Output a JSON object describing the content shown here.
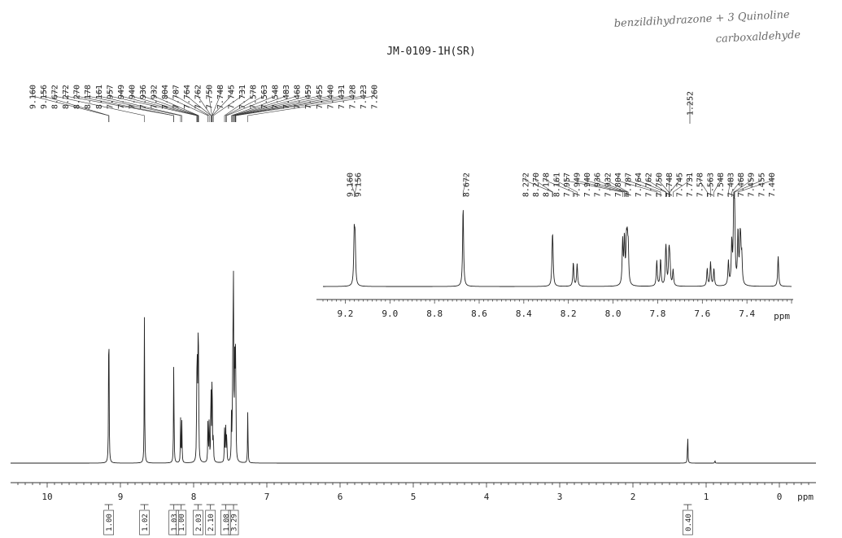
{
  "header": {
    "sample_id": "JM-0109-1H(SR)",
    "handwritten_note_line1": "benzildihydrazone + 3 Quinoline",
    "handwritten_note_line2": "carboxaldehyde"
  },
  "chart_data": [
    {
      "type": "line",
      "subtype": "1H NMR spectrum (full)",
      "xlabel": "ppm",
      "xlim": [
        10.5,
        -0.5
      ],
      "x_axis_reversed": true,
      "x_ticks": [
        10,
        9,
        8,
        7,
        6,
        5,
        4,
        3,
        2,
        1,
        0
      ],
      "grid": false,
      "peaks": [
        {
          "ppm": 9.16,
          "height": 0.62
        },
        {
          "ppm": 9.156,
          "height": 0.55
        },
        {
          "ppm": 8.672,
          "height": 1.0
        },
        {
          "ppm": 8.272,
          "height": 0.4
        },
        {
          "ppm": 8.27,
          "height": 0.36
        },
        {
          "ppm": 8.178,
          "height": 0.3
        },
        {
          "ppm": 8.161,
          "height": 0.28
        },
        {
          "ppm": 7.957,
          "height": 0.55
        },
        {
          "ppm": 7.949,
          "height": 0.58
        },
        {
          "ppm": 7.94,
          "height": 0.5
        },
        {
          "ppm": 7.936,
          "height": 0.45
        },
        {
          "ppm": 7.932,
          "height": 0.42
        },
        {
          "ppm": 7.804,
          "height": 0.32
        },
        {
          "ppm": 7.787,
          "height": 0.34
        },
        {
          "ppm": 7.764,
          "height": 0.3
        },
        {
          "ppm": 7.762,
          "height": 0.28
        },
        {
          "ppm": 7.75,
          "height": 0.25
        },
        {
          "ppm": 7.748,
          "height": 0.24
        },
        {
          "ppm": 7.745,
          "height": 0.22
        },
        {
          "ppm": 7.731,
          "height": 0.2
        },
        {
          "ppm": 7.578,
          "height": 0.22
        },
        {
          "ppm": 7.563,
          "height": 0.3
        },
        {
          "ppm": 7.548,
          "height": 0.22
        },
        {
          "ppm": 7.483,
          "height": 0.3
        },
        {
          "ppm": 7.468,
          "height": 0.52
        },
        {
          "ppm": 7.459,
          "height": 0.9
        },
        {
          "ppm": 7.455,
          "height": 0.78
        },
        {
          "ppm": 7.44,
          "height": 0.66
        },
        {
          "ppm": 7.431,
          "height": 0.45
        },
        {
          "ppm": 7.428,
          "height": 0.38
        },
        {
          "ppm": 7.423,
          "height": 0.32
        },
        {
          "ppm": 7.26,
          "height": 0.38
        },
        {
          "ppm": 1.252,
          "height": 0.22
        },
        {
          "ppm": 0.88,
          "height": 0.02
        }
      ],
      "peak_labels": [
        "9.160",
        "9.156",
        "8.672",
        "8.272",
        "8.270",
        "8.178",
        "8.161",
        "7.957",
        "7.949",
        "7.940",
        "7.936",
        "7.932",
        "7.804",
        "7.787",
        "7.764",
        "7.762",
        "7.750",
        "7.748",
        "7.745",
        "7.731",
        "7.578",
        "7.563",
        "7.548",
        "7.483",
        "7.468",
        "7.459",
        "7.455",
        "7.440",
        "7.431",
        "7.428",
        "7.423",
        "7.260"
      ],
      "isolated_peak_label": "1.252",
      "integrals": [
        {
          "ppm": 9.16,
          "value": "1.00"
        },
        {
          "ppm": 8.672,
          "value": "1.02"
        },
        {
          "ppm": 8.27,
          "value": "1.03"
        },
        {
          "ppm": 8.17,
          "value": "1.00"
        },
        {
          "ppm": 7.94,
          "value": "2.03"
        },
        {
          "ppm": 7.77,
          "value": "2.10"
        },
        {
          "ppm": 7.563,
          "value": "1.08"
        },
        {
          "ppm": 7.455,
          "value": "3.29"
        },
        {
          "ppm": 1.252,
          "value": "0.40"
        }
      ]
    },
    {
      "type": "line",
      "subtype": "1H NMR spectrum (expansion inset)",
      "xlabel": "ppm",
      "xlim": [
        9.3,
        7.2
      ],
      "x_axis_reversed": true,
      "x_ticks": [
        "9.2",
        "9.0",
        "8.8",
        "8.6",
        "8.4",
        "8.2",
        "8.0",
        "7.8",
        "7.6",
        "7.4"
      ],
      "grid": false,
      "peak_labels": [
        "9.160",
        "9.156",
        "8.672",
        "8.272",
        "8.270",
        "8.178",
        "8.161",
        "7.957",
        "7.949",
        "7.940",
        "7.936",
        "7.932",
        "7.804",
        "7.787",
        "7.764",
        "7.762",
        "7.750",
        "7.748",
        "7.745",
        "7.731",
        "7.578",
        "7.563",
        "7.548",
        "7.483",
        "7.468",
        "7.459",
        "7.455",
        "7.440"
      ]
    }
  ]
}
